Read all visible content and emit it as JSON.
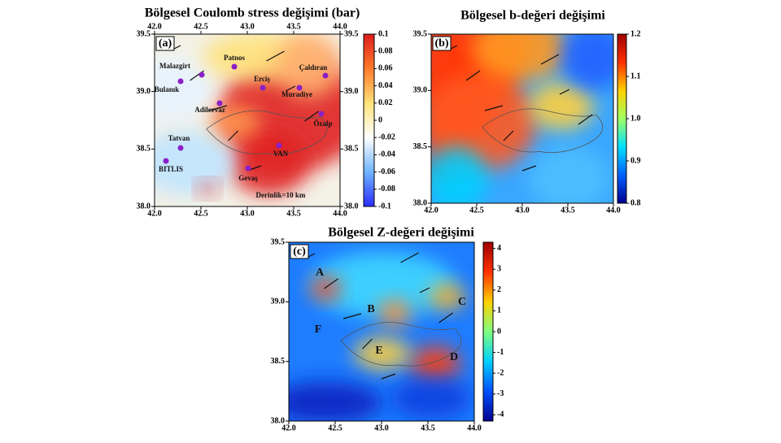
{
  "chart_data": [
    {
      "type": "heatmap",
      "label": "(a)",
      "title": "Bölgesel Coulomb stress değişimi (bar)",
      "xlim": [
        42,
        44
      ],
      "ylim": [
        38,
        39.5
      ],
      "xticks": [
        {
          "value": 42,
          "label": "42.0"
        },
        42.5,
        {
          "value": 43,
          "label": "43.0"
        },
        43.5,
        {
          "value": 44,
          "label": "44.0"
        }
      ],
      "yticks": [
        {
          "value": 38,
          "label": "38.0"
        },
        38.5,
        {
          "value": 39,
          "label": "39.0"
        },
        39.5
      ],
      "colorbar": {
        "lim": [
          -0.1,
          0.1
        ],
        "ticks": [
          0.1,
          0.08,
          0.06,
          0.04,
          0.02,
          0,
          -0.02,
          -0.04,
          -0.06,
          -0.08,
          -0.1
        ],
        "colors": [
          "#2b2bff",
          "#6fb4ff",
          "#ffffff",
          "#ffe27a",
          "#ff7a2a",
          "#dd1c1c"
        ]
      },
      "annotations": [
        "Malazgirt",
        "Patnos",
        "Bulanık",
        "Erciş",
        "Çaldıran",
        "Muradiye",
        "Adilcevaz",
        "Özalp",
        "Tatvan",
        "VAN",
        "BITLIS",
        "Gevaş",
        "Derinlik=10 km"
      ]
    },
    {
      "type": "heatmap",
      "label": "(b)",
      "title": "Bölgesel b-değeri değişimi",
      "xlim": [
        42,
        44
      ],
      "ylim": [
        38,
        39.5
      ],
      "xticks": [
        {
          "value": 42,
          "label": "42.0"
        },
        42.5,
        {
          "value": 43,
          "label": "43.0"
        },
        43.5,
        {
          "value": 44,
          "label": "44.0"
        }
      ],
      "yticks": [
        {
          "value": 38,
          "label": "38.0"
        },
        38.5,
        {
          "value": 39,
          "label": "39.0"
        },
        39.5
      ],
      "colorbar": {
        "lim": [
          0.8,
          1.2
        ],
        "ticks": [
          1.2,
          1.1,
          {
            "value": 1,
            "label": "1.0"
          },
          0.9,
          0.8
        ],
        "colors": [
          "#00008f",
          "#0060ff",
          "#00e0ff",
          "#a0ff60",
          "#ffd000",
          "#ff3000",
          "#a00000"
        ]
      }
    },
    {
      "type": "heatmap",
      "label": "(c)",
      "title": "Bölgesel Z-değeri değişimi",
      "xlim": [
        42,
        44
      ],
      "ylim": [
        38,
        39.5
      ],
      "xticks": [
        {
          "value": 42,
          "label": "42.0"
        },
        42.5,
        {
          "value": 43,
          "label": "43.0"
        },
        43.5,
        {
          "value": 44,
          "label": "44.0"
        }
      ],
      "yticks": [
        {
          "value": 38,
          "label": "38.0"
        },
        38.5,
        {
          "value": 39,
          "label": "39.0"
        },
        39.5
      ],
      "colorbar": {
        "lim": [
          -4.3,
          4.3
        ],
        "ticks": [
          4,
          3,
          2,
          1,
          0,
          -1,
          -2,
          -3,
          -4
        ],
        "colors": [
          "#00008f",
          "#0050ff",
          "#00d0ff",
          "#80ff80",
          "#ffd000",
          "#ff3000",
          "#a00000"
        ]
      },
      "annotations": [
        "A",
        "B",
        "C",
        "D",
        "E",
        "F"
      ]
    }
  ]
}
